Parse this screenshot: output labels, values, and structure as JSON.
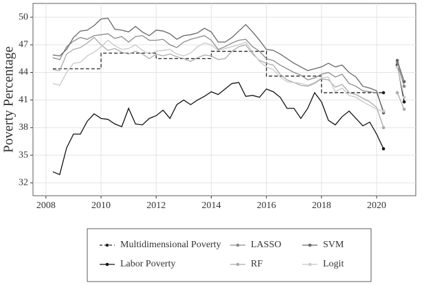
{
  "chart_data": {
    "type": "line",
    "y_label": "Poverty Percentage",
    "xlim": [
      2007.53,
      2021.42
    ],
    "ylim": [
      30.6,
      51.5
    ],
    "xticks": [
      2008,
      2010,
      2012,
      2014,
      2016,
      2018,
      2020
    ],
    "yticks": [
      32,
      35,
      38,
      41,
      44,
      47,
      50
    ],
    "grid": true,
    "legend": "bottom",
    "x": [
      2008.25,
      2008.5,
      2008.75,
      2009,
      2009.25,
      2009.5,
      2009.75,
      2010,
      2010.25,
      2010.5,
      2010.75,
      2011,
      2011.25,
      2011.5,
      2011.75,
      2012,
      2012.25,
      2012.5,
      2012.75,
      2013,
      2013.25,
      2013.5,
      2013.75,
      2014,
      2014.25,
      2014.5,
      2014.75,
      2015,
      2015.25,
      2015.5,
      2015.75,
      2016,
      2016.25,
      2016.5,
      2016.75,
      2017,
      2017.25,
      2017.5,
      2017.75,
      2018,
      2018.25,
      2018.5,
      2018.75,
      2019,
      2019.25,
      2019.5,
      2019.75,
      2020,
      2020.25,
      2020.5,
      2020.75,
      2021
    ],
    "series": [
      {
        "name": "Multidimensional Poverty",
        "color": "#222222",
        "dash": true,
        "x": [
          2008.25,
          2010,
          2010,
          2012,
          2012,
          2014,
          2014,
          2016,
          2016,
          2018,
          2018,
          2020.25
        ],
        "values": [
          44.4,
          44.4,
          46.1,
          46.1,
          45.5,
          45.5,
          46.3,
          46.3,
          43.6,
          43.6,
          41.8,
          41.8
        ]
      },
      {
        "name": "Labor Poverty",
        "color": "#111111",
        "values": [
          33.2,
          32.9,
          35.8,
          37.3,
          37.3,
          38.7,
          39.5,
          39.0,
          38.9,
          38.4,
          38.1,
          40.1,
          38.4,
          38.3,
          39.0,
          39.3,
          39.9,
          39.0,
          40.5,
          41.0,
          40.5,
          41.0,
          41.4,
          41.9,
          41.6,
          42.2,
          42.8,
          42.9,
          41.4,
          41.5,
          41.3,
          42.2,
          41.9,
          41.3,
          40.1,
          40.1,
          39.0,
          40.1,
          41.8,
          40.8,
          38.8,
          38.3,
          39.2,
          39.8,
          39.0,
          38.2,
          38.6,
          37.3,
          35.7,
          null,
          44.8,
          40.8
        ]
      },
      {
        "name": "LASSO",
        "color": "#8a8a8a",
        "values": [
          45.6,
          45.4,
          46.8,
          47.4,
          47.8,
          47.6,
          48.0,
          48.1,
          48.2,
          47.7,
          47.9,
          47.3,
          47.9,
          48.0,
          47.5,
          47.5,
          47.6,
          47.0,
          46.7,
          47.3,
          47.6,
          47.8,
          48.0,
          47.5,
          46.5,
          46.8,
          47.2,
          47.5,
          47.6,
          46.8,
          46.3,
          45.5,
          45.3,
          44.8,
          44.4,
          44.0,
          43.7,
          43.2,
          43.4,
          43.8,
          44.0,
          43.5,
          43.8,
          42.8,
          42.5,
          42.0,
          41.9,
          41.8,
          39.8,
          null,
          45.0,
          42.5
        ]
      },
      {
        "name": "RF",
        "color": "#a9a9a9",
        "values": [
          44.3,
          44.2,
          46.0,
          46.5,
          46.7,
          47.2,
          47.8,
          47.0,
          46.4,
          46.6,
          46.2,
          46.0,
          46.3,
          46.0,
          45.5,
          46.0,
          45.8,
          46.0,
          45.7,
          45.5,
          45.2,
          45.6,
          45.9,
          45.8,
          45.4,
          45.5,
          46.3,
          46.8,
          47.0,
          46.0,
          45.3,
          45.0,
          44.8,
          43.8,
          43.2,
          42.9,
          42.6,
          42.5,
          42.8,
          43.3,
          43.2,
          42.4,
          42.7,
          41.8,
          41.6,
          41.2,
          40.8,
          40.2,
          38.0,
          null,
          41.8,
          40.0
        ]
      },
      {
        "name": "SVM",
        "color": "#666666",
        "values": [
          45.9,
          45.8,
          46.5,
          47.8,
          48.5,
          48.6,
          49.1,
          49.8,
          49.9,
          48.7,
          48.6,
          48.4,
          49.0,
          48.4,
          48.0,
          48.6,
          48.5,
          48.2,
          47.6,
          48.0,
          48.1,
          48.3,
          48.8,
          48.4,
          47.3,
          47.3,
          47.8,
          48.5,
          49.2,
          48.4,
          47.5,
          46.5,
          46.4,
          46.0,
          45.5,
          45.0,
          44.6,
          44.2,
          44.4,
          44.6,
          45.0,
          44.6,
          44.8,
          44.0,
          43.5,
          42.5,
          42.3,
          42.0,
          39.6,
          null,
          45.3,
          43.0
        ]
      },
      {
        "name": "Logit",
        "color": "#c8c8c8",
        "values": [
          42.8,
          42.6,
          44.0,
          45.0,
          45.1,
          45.8,
          46.2,
          46.8,
          47.5,
          46.9,
          46.5,
          46.6,
          47.0,
          46.4,
          46.0,
          46.3,
          46.4,
          46.5,
          46.0,
          45.8,
          46.1,
          46.8,
          47.2,
          47.0,
          46.4,
          46.6,
          46.8,
          47.0,
          47.3,
          46.2,
          45.2,
          44.6,
          44.3,
          43.5,
          43.0,
          42.9,
          42.8,
          42.6,
          42.9,
          43.4,
          43.5,
          41.9,
          42.3,
          41.5,
          41.3,
          40.8,
          40.4,
          40.0,
          39.8,
          null,
          44.6,
          41.3
        ]
      }
    ]
  }
}
